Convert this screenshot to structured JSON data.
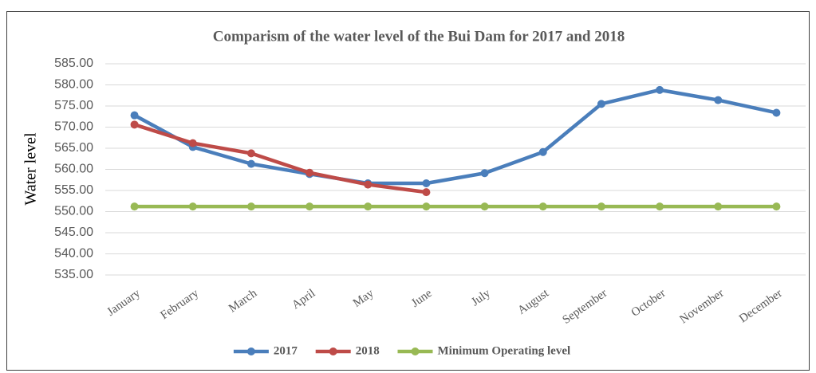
{
  "chart_data": {
    "type": "line",
    "title": "Comparism of the water level of the Bui Dam for 2017 and 2018",
    "y_label": "Water level",
    "categories": [
      "January",
      "February",
      "March",
      "April",
      "May",
      "June",
      "July",
      "August",
      "September",
      "October",
      "November",
      "December"
    ],
    "series": [
      {
        "name": "2017",
        "color": "#4a7ebb",
        "values": [
          572.8,
          565.3,
          561.3,
          558.9,
          556.7,
          556.7,
          559.1,
          564.1,
          575.5,
          578.8,
          576.4,
          573.4
        ]
      },
      {
        "name": "2018",
        "color": "#be4b48",
        "values": [
          570.6,
          566.2,
          563.8,
          559.2,
          556.4,
          554.6,
          null,
          null,
          null,
          null,
          null,
          null
        ]
      },
      {
        "name": "Minimum Operating level",
        "color": "#98b954",
        "values": [
          551.2,
          551.2,
          551.2,
          551.2,
          551.2,
          551.2,
          551.2,
          551.2,
          551.2,
          551.2,
          551.2,
          551.2
        ]
      }
    ],
    "ylim": [
      535,
      585
    ],
    "yticks": [
      {
        "value": 535,
        "label": "535.00"
      },
      {
        "value": 540,
        "label": "540.00"
      },
      {
        "value": 545,
        "label": "545.00"
      },
      {
        "value": 550,
        "label": "550.00"
      },
      {
        "value": 555,
        "label": "555.00"
      },
      {
        "value": 560,
        "label": "560.00"
      },
      {
        "value": 565,
        "label": "565.00"
      },
      {
        "value": 570,
        "label": "570.00"
      },
      {
        "value": 575,
        "label": "575.00"
      },
      {
        "value": 580,
        "label": "580.00"
      },
      {
        "value": 585,
        "label": "585.00"
      }
    ],
    "grid": true,
    "legend": "bottom"
  }
}
